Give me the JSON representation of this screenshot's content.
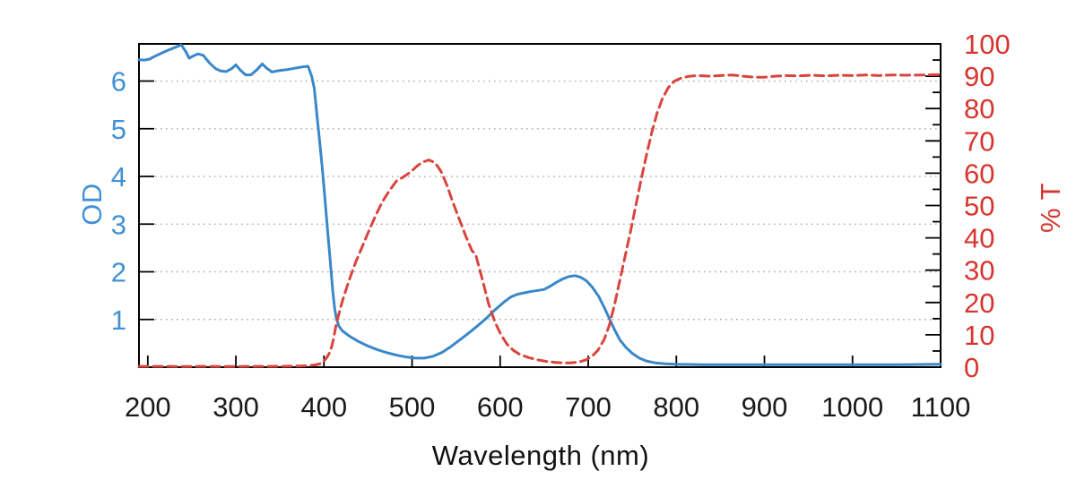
{
  "chart_data": {
    "type": "line",
    "title": "",
    "x_axis": {
      "label": "Wavelength (nm)",
      "min": 190,
      "max": 1100,
      "ticks": [
        200,
        300,
        400,
        500,
        600,
        700,
        800,
        900,
        1000,
        1100
      ],
      "tick_label_color": "#1a1a1a"
    },
    "y_axis_left": {
      "label": "OD",
      "min": 0,
      "max": 6.78,
      "ticks": [
        1,
        2,
        3,
        4,
        5,
        6
      ],
      "color": "#4191d4"
    },
    "y_axis_right": {
      "label": "% T",
      "min": 0,
      "max": 100,
      "major_ticks": [
        0,
        10,
        20,
        30,
        40,
        50,
        60,
        70,
        80,
        90,
        100
      ],
      "minor_tick_step": 5,
      "color": "#d6362f"
    },
    "grid": {
      "horizontal_gridlines_at_left_ticks": true,
      "vertical_gridlines": false,
      "color": "#a9a9a9",
      "style": "dotted"
    },
    "legend": "none",
    "axis_box_color": "#000000",
    "series": [
      {
        "name": "OD",
        "axis": "left",
        "color": "#3a87c9",
        "line_style": "solid",
        "points": [
          [
            190,
            6.45
          ],
          [
            196,
            6.44
          ],
          [
            202,
            6.46
          ],
          [
            208,
            6.52
          ],
          [
            215,
            6.58
          ],
          [
            222,
            6.64
          ],
          [
            230,
            6.7
          ],
          [
            238,
            6.76
          ],
          [
            243,
            6.62
          ],
          [
            247,
            6.48
          ],
          [
            252,
            6.53
          ],
          [
            257,
            6.57
          ],
          [
            263,
            6.54
          ],
          [
            270,
            6.38
          ],
          [
            277,
            6.26
          ],
          [
            283,
            6.21
          ],
          [
            289,
            6.2
          ],
          [
            295,
            6.26
          ],
          [
            300,
            6.34
          ],
          [
            305,
            6.23
          ],
          [
            311,
            6.13
          ],
          [
            317,
            6.13
          ],
          [
            324,
            6.24
          ],
          [
            330,
            6.36
          ],
          [
            335,
            6.27
          ],
          [
            341,
            6.19
          ],
          [
            349,
            6.22
          ],
          [
            358,
            6.24
          ],
          [
            367,
            6.27
          ],
          [
            376,
            6.3
          ],
          [
            382,
            6.31
          ],
          [
            386,
            6.1
          ],
          [
            389,
            5.85
          ],
          [
            392,
            5.3
          ],
          [
            395,
            4.75
          ],
          [
            398,
            4.2
          ],
          [
            401,
            3.55
          ],
          [
            404,
            2.9
          ],
          [
            407,
            2.25
          ],
          [
            410,
            1.6
          ],
          [
            412,
            1.25
          ],
          [
            414,
            1.02
          ],
          [
            417,
            0.86
          ],
          [
            421,
            0.76
          ],
          [
            429,
            0.65
          ],
          [
            438,
            0.55
          ],
          [
            449,
            0.45
          ],
          [
            460,
            0.37
          ],
          [
            472,
            0.3
          ],
          [
            483,
            0.25
          ],
          [
            494,
            0.21
          ],
          [
            504,
            0.19
          ],
          [
            514,
            0.19
          ],
          [
            524,
            0.23
          ],
          [
            534,
            0.31
          ],
          [
            544,
            0.43
          ],
          [
            554,
            0.57
          ],
          [
            564,
            0.71
          ],
          [
            574,
            0.86
          ],
          [
            584,
            1.02
          ],
          [
            594,
            1.2
          ],
          [
            604,
            1.36
          ],
          [
            612,
            1.47
          ],
          [
            620,
            1.53
          ],
          [
            628,
            1.56
          ],
          [
            636,
            1.59
          ],
          [
            643,
            1.61
          ],
          [
            650,
            1.63
          ],
          [
            657,
            1.7
          ],
          [
            664,
            1.78
          ],
          [
            671,
            1.85
          ],
          [
            678,
            1.9
          ],
          [
            685,
            1.92
          ],
          [
            691,
            1.89
          ],
          [
            698,
            1.81
          ],
          [
            705,
            1.67
          ],
          [
            712,
            1.48
          ],
          [
            718,
            1.26
          ],
          [
            724,
            1.02
          ],
          [
            730,
            0.78
          ],
          [
            736,
            0.57
          ],
          [
            743,
            0.41
          ],
          [
            750,
            0.29
          ],
          [
            758,
            0.19
          ],
          [
            766,
            0.13
          ],
          [
            776,
            0.09
          ],
          [
            788,
            0.07
          ],
          [
            800,
            0.06
          ],
          [
            830,
            0.05
          ],
          [
            860,
            0.05
          ],
          [
            900,
            0.05
          ],
          [
            950,
            0.05
          ],
          [
            1000,
            0.05
          ],
          [
            1050,
            0.05
          ],
          [
            1100,
            0.06
          ]
        ]
      },
      {
        "name": "% T",
        "axis": "right",
        "color": "#d9453e",
        "line_style": "dashed",
        "points": [
          [
            190,
            0.25
          ],
          [
            215,
            0.25
          ],
          [
            240,
            0.2
          ],
          [
            265,
            0.25
          ],
          [
            290,
            0.2
          ],
          [
            315,
            0.25
          ],
          [
            340,
            0.25
          ],
          [
            360,
            0.3
          ],
          [
            372,
            0.35
          ],
          [
            382,
            0.45
          ],
          [
            390,
            0.7
          ],
          [
            396,
            1.1
          ],
          [
            400,
            1.9
          ],
          [
            403,
            2.9
          ],
          [
            406,
            4.3
          ],
          [
            409,
            6.5
          ],
          [
            411,
            9.0
          ],
          [
            413,
            12.0
          ],
          [
            415,
            14.5
          ],
          [
            418,
            17.5
          ],
          [
            421,
            20.5
          ],
          [
            425,
            24.0
          ],
          [
            430,
            28.0
          ],
          [
            436,
            32.5
          ],
          [
            443,
            37.0
          ],
          [
            450,
            41.5
          ],
          [
            458,
            46.5
          ],
          [
            466,
            51.0
          ],
          [
            474,
            54.5
          ],
          [
            482,
            57.5
          ],
          [
            490,
            58.8
          ],
          [
            498,
            60.3
          ],
          [
            506,
            62.3
          ],
          [
            512,
            63.4
          ],
          [
            519,
            64.1
          ],
          [
            526,
            63.3
          ],
          [
            533,
            60.5
          ],
          [
            540,
            56.0
          ],
          [
            547,
            50.5
          ],
          [
            554,
            45.5
          ],
          [
            561,
            40.5
          ],
          [
            568,
            36.0
          ],
          [
            572,
            35.0
          ],
          [
            580,
            27.0
          ],
          [
            587,
            19.5
          ],
          [
            594,
            14.0
          ],
          [
            601,
            10.0
          ],
          [
            608,
            7.0
          ],
          [
            615,
            5.2
          ],
          [
            622,
            4.0
          ],
          [
            632,
            3.0
          ],
          [
            642,
            2.3
          ],
          [
            652,
            1.8
          ],
          [
            662,
            1.5
          ],
          [
            671,
            1.3
          ],
          [
            680,
            1.3
          ],
          [
            689,
            1.6
          ],
          [
            697,
            2.2
          ],
          [
            704,
            3.3
          ],
          [
            711,
            5.2
          ],
          [
            718,
            8.5
          ],
          [
            724,
            13.0
          ],
          [
            730,
            19.5
          ],
          [
            736,
            27.0
          ],
          [
            742,
            34.5
          ],
          [
            748,
            42.0
          ],
          [
            754,
            50.0
          ],
          [
            760,
            58.0
          ],
          [
            766,
            65.5
          ],
          [
            772,
            72.5
          ],
          [
            778,
            78.5
          ],
          [
            784,
            83.0
          ],
          [
            791,
            86.5
          ],
          [
            798,
            88.5
          ],
          [
            806,
            89.5
          ],
          [
            815,
            90.0
          ],
          [
            825,
            90.2
          ],
          [
            838,
            90.0
          ],
          [
            850,
            90.2
          ],
          [
            863,
            90.4
          ],
          [
            876,
            90.0
          ],
          [
            888,
            89.7
          ],
          [
            900,
            89.7
          ],
          [
            912,
            90.0
          ],
          [
            925,
            90.2
          ],
          [
            940,
            90.1
          ],
          [
            955,
            90.3
          ],
          [
            970,
            90.1
          ],
          [
            985,
            90.3
          ],
          [
            1000,
            90.2
          ],
          [
            1015,
            90.4
          ],
          [
            1030,
            90.2
          ],
          [
            1045,
            90.4
          ],
          [
            1060,
            90.3
          ],
          [
            1080,
            90.4
          ],
          [
            1100,
            90.5
          ]
        ]
      }
    ]
  }
}
